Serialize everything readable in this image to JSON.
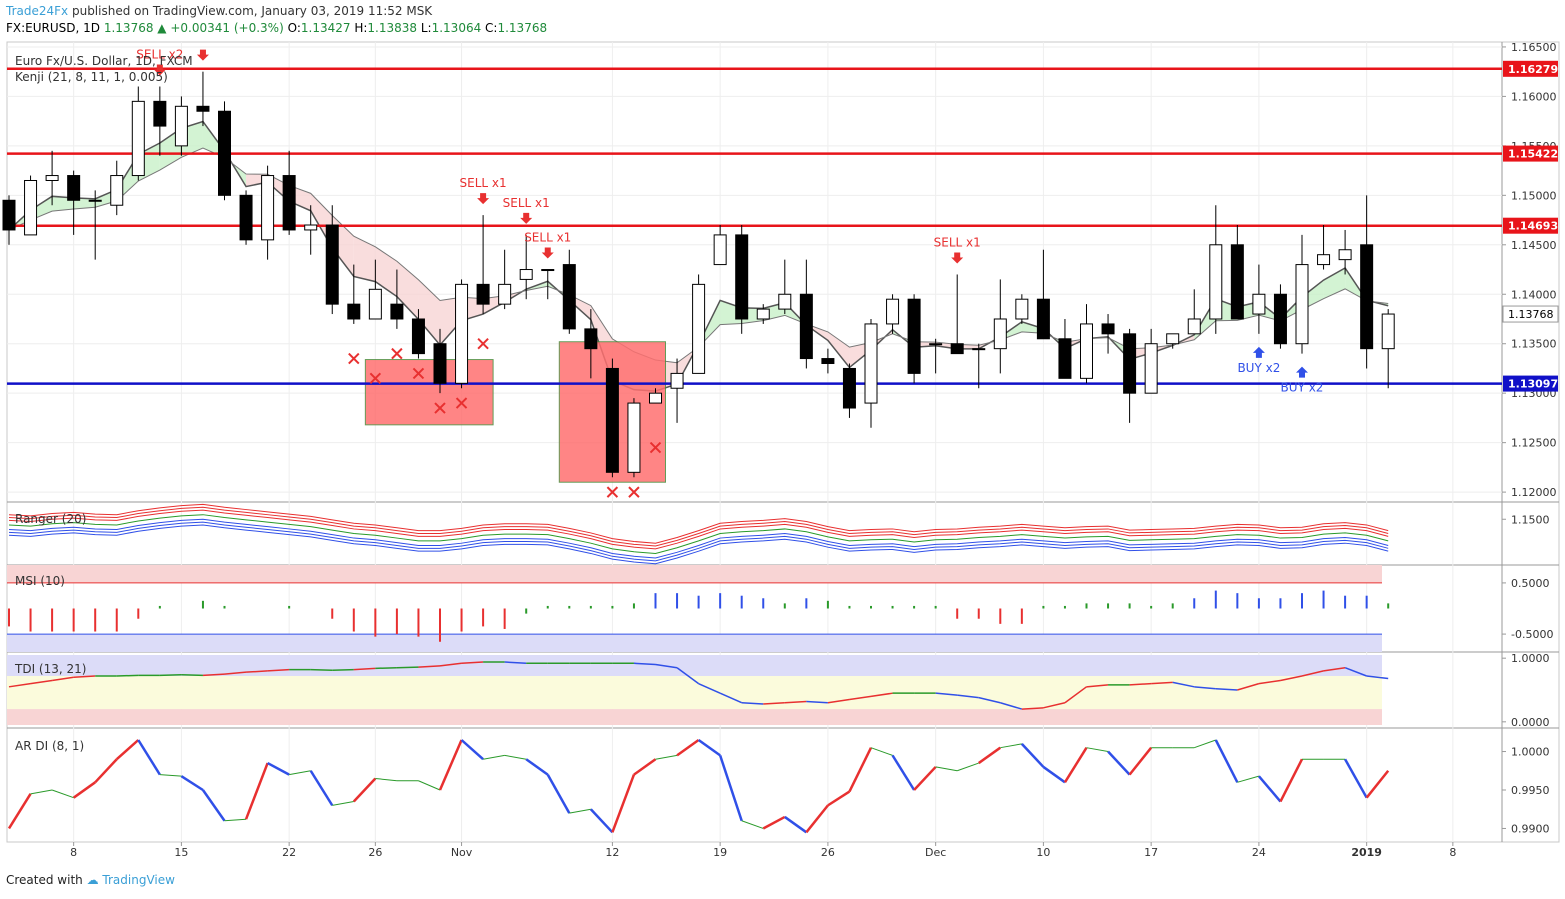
{
  "header": {
    "author": "Trade24Fx",
    "published_text": "published on TradingView.com, January 03, 2019 11:52 MSK"
  },
  "ohlc": {
    "symbol": "FX:EURUSD, 1D",
    "last": "1.13768",
    "change": "+0.00341 (+0.3%)",
    "o_label": "O:",
    "o": "1.13427",
    "h_label": "H:",
    "h": "1.13838",
    "l_label": "L:",
    "l": "1.13064",
    "c_label": "C:",
    "c": "1.13768",
    "change_color": "#1f8a3a"
  },
  "footer": {
    "created_text": "Created with",
    "brand": "TradingView"
  },
  "chart_data": {
    "type": "candlestick",
    "title": "Euro Fx/U.S. Dollar, 1D, FXCM",
    "indicator_main": "Kenji (21, 8, 11, 1, 0.005)",
    "price_ticks": [
      "1.16500",
      "1.16000",
      "1.15500",
      "1.15000",
      "1.14500",
      "1.14000",
      "1.13500",
      "1.13000",
      "1.12500",
      "1.12000"
    ],
    "price_tick_values": [
      1.165,
      1.16,
      1.155,
      1.15,
      1.145,
      1.14,
      1.135,
      1.13,
      1.125,
      1.12
    ],
    "ylim": [
      1.119,
      1.1655
    ],
    "horizontal_levels": [
      {
        "value": 1.16279,
        "label": "1.16279",
        "color": "#e8141a"
      },
      {
        "value": 1.15422,
        "label": "1.15422",
        "color": "#e8141a"
      },
      {
        "value": 1.14693,
        "label": "1.14693",
        "color": "#e8141a"
      },
      {
        "value": 1.13097,
        "label": "1.13097",
        "color": "#1010c8"
      }
    ],
    "last_price_label": "1.13768",
    "x_labels": [
      {
        "label": "8",
        "i": 3
      },
      {
        "label": "15",
        "i": 8
      },
      {
        "label": "22",
        "i": 13
      },
      {
        "label": "26",
        "i": 17
      },
      {
        "label": "Nov",
        "i": 21
      },
      {
        "label": "12",
        "i": 28
      },
      {
        "label": "19",
        "i": 33
      },
      {
        "label": "26",
        "i": 38
      },
      {
        "label": "Dec",
        "i": 43
      },
      {
        "label": "10",
        "i": 48
      },
      {
        "label": "17",
        "i": 53
      },
      {
        "label": "24",
        "i": 58
      },
      {
        "label": "2019",
        "i": 63
      },
      {
        "label": "8",
        "i": 67
      }
    ],
    "candles": [
      [
        1.1495,
        1.15,
        1.145,
        1.1465
      ],
      [
        1.146,
        1.152,
        1.146,
        1.1515
      ],
      [
        1.1515,
        1.1545,
        1.149,
        1.152
      ],
      [
        1.152,
        1.1525,
        1.146,
        1.1495
      ],
      [
        1.1495,
        1.1505,
        1.1435,
        1.1495
      ],
      [
        1.149,
        1.1535,
        1.148,
        1.152
      ],
      [
        1.152,
        1.161,
        1.1515,
        1.1595
      ],
      [
        1.1595,
        1.161,
        1.154,
        1.157
      ],
      [
        1.155,
        1.16,
        1.154,
        1.159
      ],
      [
        1.159,
        1.1625,
        1.157,
        1.1585
      ],
      [
        1.1585,
        1.1595,
        1.1495,
        1.15
      ],
      [
        1.15,
        1.1505,
        1.145,
        1.1455
      ],
      [
        1.1455,
        1.153,
        1.1435,
        1.152
      ],
      [
        1.152,
        1.1545,
        1.146,
        1.1465
      ],
      [
        1.1465,
        1.149,
        1.144,
        1.147
      ],
      [
        1.147,
        1.149,
        1.138,
        1.139
      ],
      [
        1.139,
        1.143,
        1.137,
        1.1375
      ],
      [
        1.1375,
        1.1435,
        1.1375,
        1.1405
      ],
      [
        1.139,
        1.1425,
        1.1365,
        1.1375
      ],
      [
        1.1375,
        1.1385,
        1.1335,
        1.134
      ],
      [
        1.135,
        1.1365,
        1.13,
        1.131
      ],
      [
        1.131,
        1.1415,
        1.1305,
        1.141
      ],
      [
        1.141,
        1.148,
        1.138,
        1.139
      ],
      [
        1.139,
        1.1445,
        1.1385,
        1.141
      ],
      [
        1.1415,
        1.146,
        1.1395,
        1.1425
      ],
      [
        1.1425,
        1.1425,
        1.1395,
        1.1425
      ],
      [
        1.143,
        1.1445,
        1.136,
        1.1365
      ],
      [
        1.1365,
        1.1385,
        1.1315,
        1.1345
      ],
      [
        1.1325,
        1.1335,
        1.1215,
        1.122
      ],
      [
        1.122,
        1.1295,
        1.1215,
        1.129
      ],
      [
        1.129,
        1.1305,
        1.129,
        1.13
      ],
      [
        1.1305,
        1.1335,
        1.127,
        1.132
      ],
      [
        1.132,
        1.142,
        1.132,
        1.141
      ],
      [
        1.143,
        1.147,
        1.143,
        1.146
      ],
      [
        1.146,
        1.147,
        1.136,
        1.1375
      ],
      [
        1.1375,
        1.139,
        1.137,
        1.1385
      ],
      [
        1.1385,
        1.1435,
        1.138,
        1.14
      ],
      [
        1.14,
        1.1435,
        1.1325,
        1.1335
      ],
      [
        1.1335,
        1.1345,
        1.132,
        1.133
      ],
      [
        1.1325,
        1.133,
        1.1275,
        1.1285
      ],
      [
        1.129,
        1.1375,
        1.1265,
        1.137
      ],
      [
        1.137,
        1.14,
        1.136,
        1.1395
      ],
      [
        1.1395,
        1.14,
        1.131,
        1.132
      ],
      [
        1.135,
        1.1355,
        1.132,
        1.135
      ],
      [
        1.135,
        1.142,
        1.134,
        1.134
      ],
      [
        1.1345,
        1.135,
        1.1305,
        1.1345
      ],
      [
        1.1345,
        1.1415,
        1.132,
        1.1375
      ],
      [
        1.1375,
        1.14,
        1.137,
        1.1395
      ],
      [
        1.1395,
        1.1445,
        1.1355,
        1.1355
      ],
      [
        1.1355,
        1.1375,
        1.1315,
        1.1315
      ],
      [
        1.1315,
        1.139,
        1.131,
        1.137
      ],
      [
        1.137,
        1.138,
        1.134,
        1.136
      ],
      [
        1.136,
        1.1365,
        1.127,
        1.13
      ],
      [
        1.13,
        1.1365,
        1.13,
        1.135
      ],
      [
        1.135,
        1.136,
        1.1345,
        1.136
      ],
      [
        1.136,
        1.1405,
        1.136,
        1.1375
      ],
      [
        1.1375,
        1.149,
        1.136,
        1.145
      ],
      [
        1.145,
        1.147,
        1.1375,
        1.1375
      ],
      [
        1.138,
        1.143,
        1.136,
        1.14
      ],
      [
        1.14,
        1.141,
        1.1345,
        1.135
      ],
      [
        1.135,
        1.146,
        1.134,
        1.143
      ],
      [
        1.143,
        1.147,
        1.1425,
        1.144
      ],
      [
        1.1435,
        1.1465,
        1.142,
        1.1445
      ],
      [
        1.145,
        1.15,
        1.1325,
        1.1345
      ],
      [
        1.1345,
        1.1385,
        1.1305,
        1.138
      ]
    ],
    "signals": [
      {
        "type": "sell",
        "label": "SELL x2",
        "i": 7
      },
      {
        "type": "sell",
        "label": "",
        "i": 9
      },
      {
        "type": "sell",
        "label": "SELL x1",
        "i": 22
      },
      {
        "type": "sell",
        "label": "SELL x1",
        "i": 24
      },
      {
        "type": "sell",
        "label": "SELL x1",
        "i": 25
      },
      {
        "type": "sell",
        "label": "SELL x1",
        "i": 44
      },
      {
        "type": "buy",
        "label": "BUY x2",
        "i": 58
      },
      {
        "type": "buy",
        "label": "BUY x2",
        "i": 60
      }
    ],
    "x_marks": [
      {
        "i": 16,
        "v": 1.1335
      },
      {
        "i": 17,
        "v": 1.1315
      },
      {
        "i": 18,
        "v": 1.134
      },
      {
        "i": 19,
        "v": 1.132
      },
      {
        "i": 20,
        "v": 1.1285
      },
      {
        "i": 21,
        "v": 1.129
      },
      {
        "i": 22,
        "v": 1.135
      },
      {
        "i": 28,
        "v": 1.12
      },
      {
        "i": 29,
        "v": 1.12
      },
      {
        "i": 30,
        "v": 1.1245
      }
    ],
    "boxes": [
      {
        "i0": 17,
        "i1": 22,
        "top": 1.1334,
        "bottom": 1.1268
      },
      {
        "i0": 26,
        "i1": 30,
        "top": 1.1352,
        "bottom": 1.121
      }
    ],
    "ranger": {
      "title": "Ranger (20)",
      "tick": "1.1500",
      "mid": [
        1.149,
        1.1488,
        1.1492,
        1.1494,
        1.1491,
        1.149,
        1.1497,
        1.1502,
        1.1506,
        1.1508,
        1.1503,
        1.1499,
        1.1495,
        1.1491,
        1.1487,
        1.1481,
        1.1475,
        1.1472,
        1.1467,
        1.1462,
        1.1462,
        1.1466,
        1.1472,
        1.1474,
        1.1474,
        1.1473,
        1.1466,
        1.1458,
        1.1448,
        1.1443,
        1.144,
        1.145,
        1.1462,
        1.1475,
        1.1478,
        1.148,
        1.1483,
        1.1478,
        1.1469,
        1.1462,
        1.1464,
        1.1465,
        1.146,
        1.1464,
        1.1465,
        1.1468,
        1.147,
        1.1473,
        1.147,
        1.1467,
        1.1469,
        1.147,
        1.1463,
        1.1464,
        1.1465,
        1.1466,
        1.147,
        1.1473,
        1.1472,
        1.1467,
        1.1468,
        1.1474,
        1.1476,
        1.1472,
        1.1462
      ]
    },
    "msi": {
      "title": "MSI (10)",
      "ticks": [
        "0.5000",
        "-0.5000"
      ],
      "values": [
        -0.35,
        -0.45,
        -0.45,
        -0.45,
        -0.45,
        -0.45,
        -0.2,
        0.05,
        0,
        0.15,
        0.05,
        0,
        0,
        0.05,
        0,
        -0.2,
        -0.45,
        -0.55,
        -0.5,
        -0.55,
        -0.65,
        -0.45,
        -0.35,
        -0.4,
        -0.1,
        0.05,
        0.05,
        0.05,
        0.05,
        0.1,
        0.3,
        0.3,
        0.25,
        0.3,
        0.25,
        0.2,
        0.1,
        0.2,
        0.15,
        0.05,
        0.05,
        0.05,
        0.05,
        0.05,
        -0.2,
        -0.2,
        -0.3,
        -0.3,
        0.05,
        0.05,
        0.1,
        0.1,
        0.1,
        0.05,
        0.1,
        0.2,
        0.35,
        0.3,
        0.2,
        0.2,
        0.3,
        0.35,
        0.25,
        0.25,
        0.1
      ]
    },
    "tdi": {
      "title": "TDI (13, 21)",
      "ticks": [
        "1.0000",
        "0.0000"
      ],
      "values": [
        0.55,
        0.6,
        0.65,
        0.7,
        0.72,
        0.72,
        0.73,
        0.73,
        0.74,
        0.73,
        0.75,
        0.78,
        0.8,
        0.82,
        0.82,
        0.81,
        0.82,
        0.84,
        0.85,
        0.86,
        0.88,
        0.92,
        0.94,
        0.94,
        0.92,
        0.92,
        0.92,
        0.92,
        0.92,
        0.92,
        0.9,
        0.85,
        0.6,
        0.45,
        0.3,
        0.28,
        0.3,
        0.32,
        0.3,
        0.35,
        0.4,
        0.45,
        0.45,
        0.45,
        0.42,
        0.38,
        0.3,
        0.2,
        0.22,
        0.3,
        0.55,
        0.58,
        0.58,
        0.6,
        0.62,
        0.55,
        0.52,
        0.5,
        0.6,
        0.65,
        0.72,
        0.8,
        0.85,
        0.72,
        0.68
      ]
    },
    "ardi": {
      "title": "AR DI (8, 1)",
      "ticks": [
        "1.0000",
        "0.9950",
        "0.9900"
      ],
      "values": [
        0.99,
        0.9945,
        0.995,
        0.994,
        0.996,
        0.999,
        1.0015,
        0.997,
        0.9968,
        0.995,
        0.991,
        0.9912,
        0.9985,
        0.997,
        0.9975,
        0.993,
        0.9935,
        0.9965,
        0.9962,
        0.9962,
        0.995,
        1.0015,
        0.999,
        0.9995,
        0.999,
        0.997,
        0.992,
        0.9925,
        0.9895,
        0.997,
        0.999,
        0.9995,
        1.0015,
        0.9995,
        0.991,
        0.99,
        0.9915,
        0.9895,
        0.993,
        0.9948,
        1.0005,
        0.9995,
        0.995,
        0.998,
        0.9975,
        0.9985,
        1.0005,
        1.001,
        0.998,
        0.996,
        1.0005,
        1.0,
        0.997,
        1.0005,
        1.0005,
        1.0005,
        1.0015,
        0.996,
        0.9968,
        0.9935,
        0.999,
        0.999,
        0.999,
        0.994,
        0.9975
      ]
    },
    "x_range_labels": [],
    "colors": {
      "up": "#ffffff",
      "down": "#000000",
      "kenji_line": "#555555",
      "bull_fill": "#c8f0c8",
      "bear_fill": "#f8d4d4",
      "box_fill": "#ff7070",
      "sell": "#e83030",
      "buy": "#3050e8",
      "ranger_red": "#e83030",
      "ranger_blue": "#3050e8",
      "ranger_green": "#2a9a2a"
    }
  }
}
